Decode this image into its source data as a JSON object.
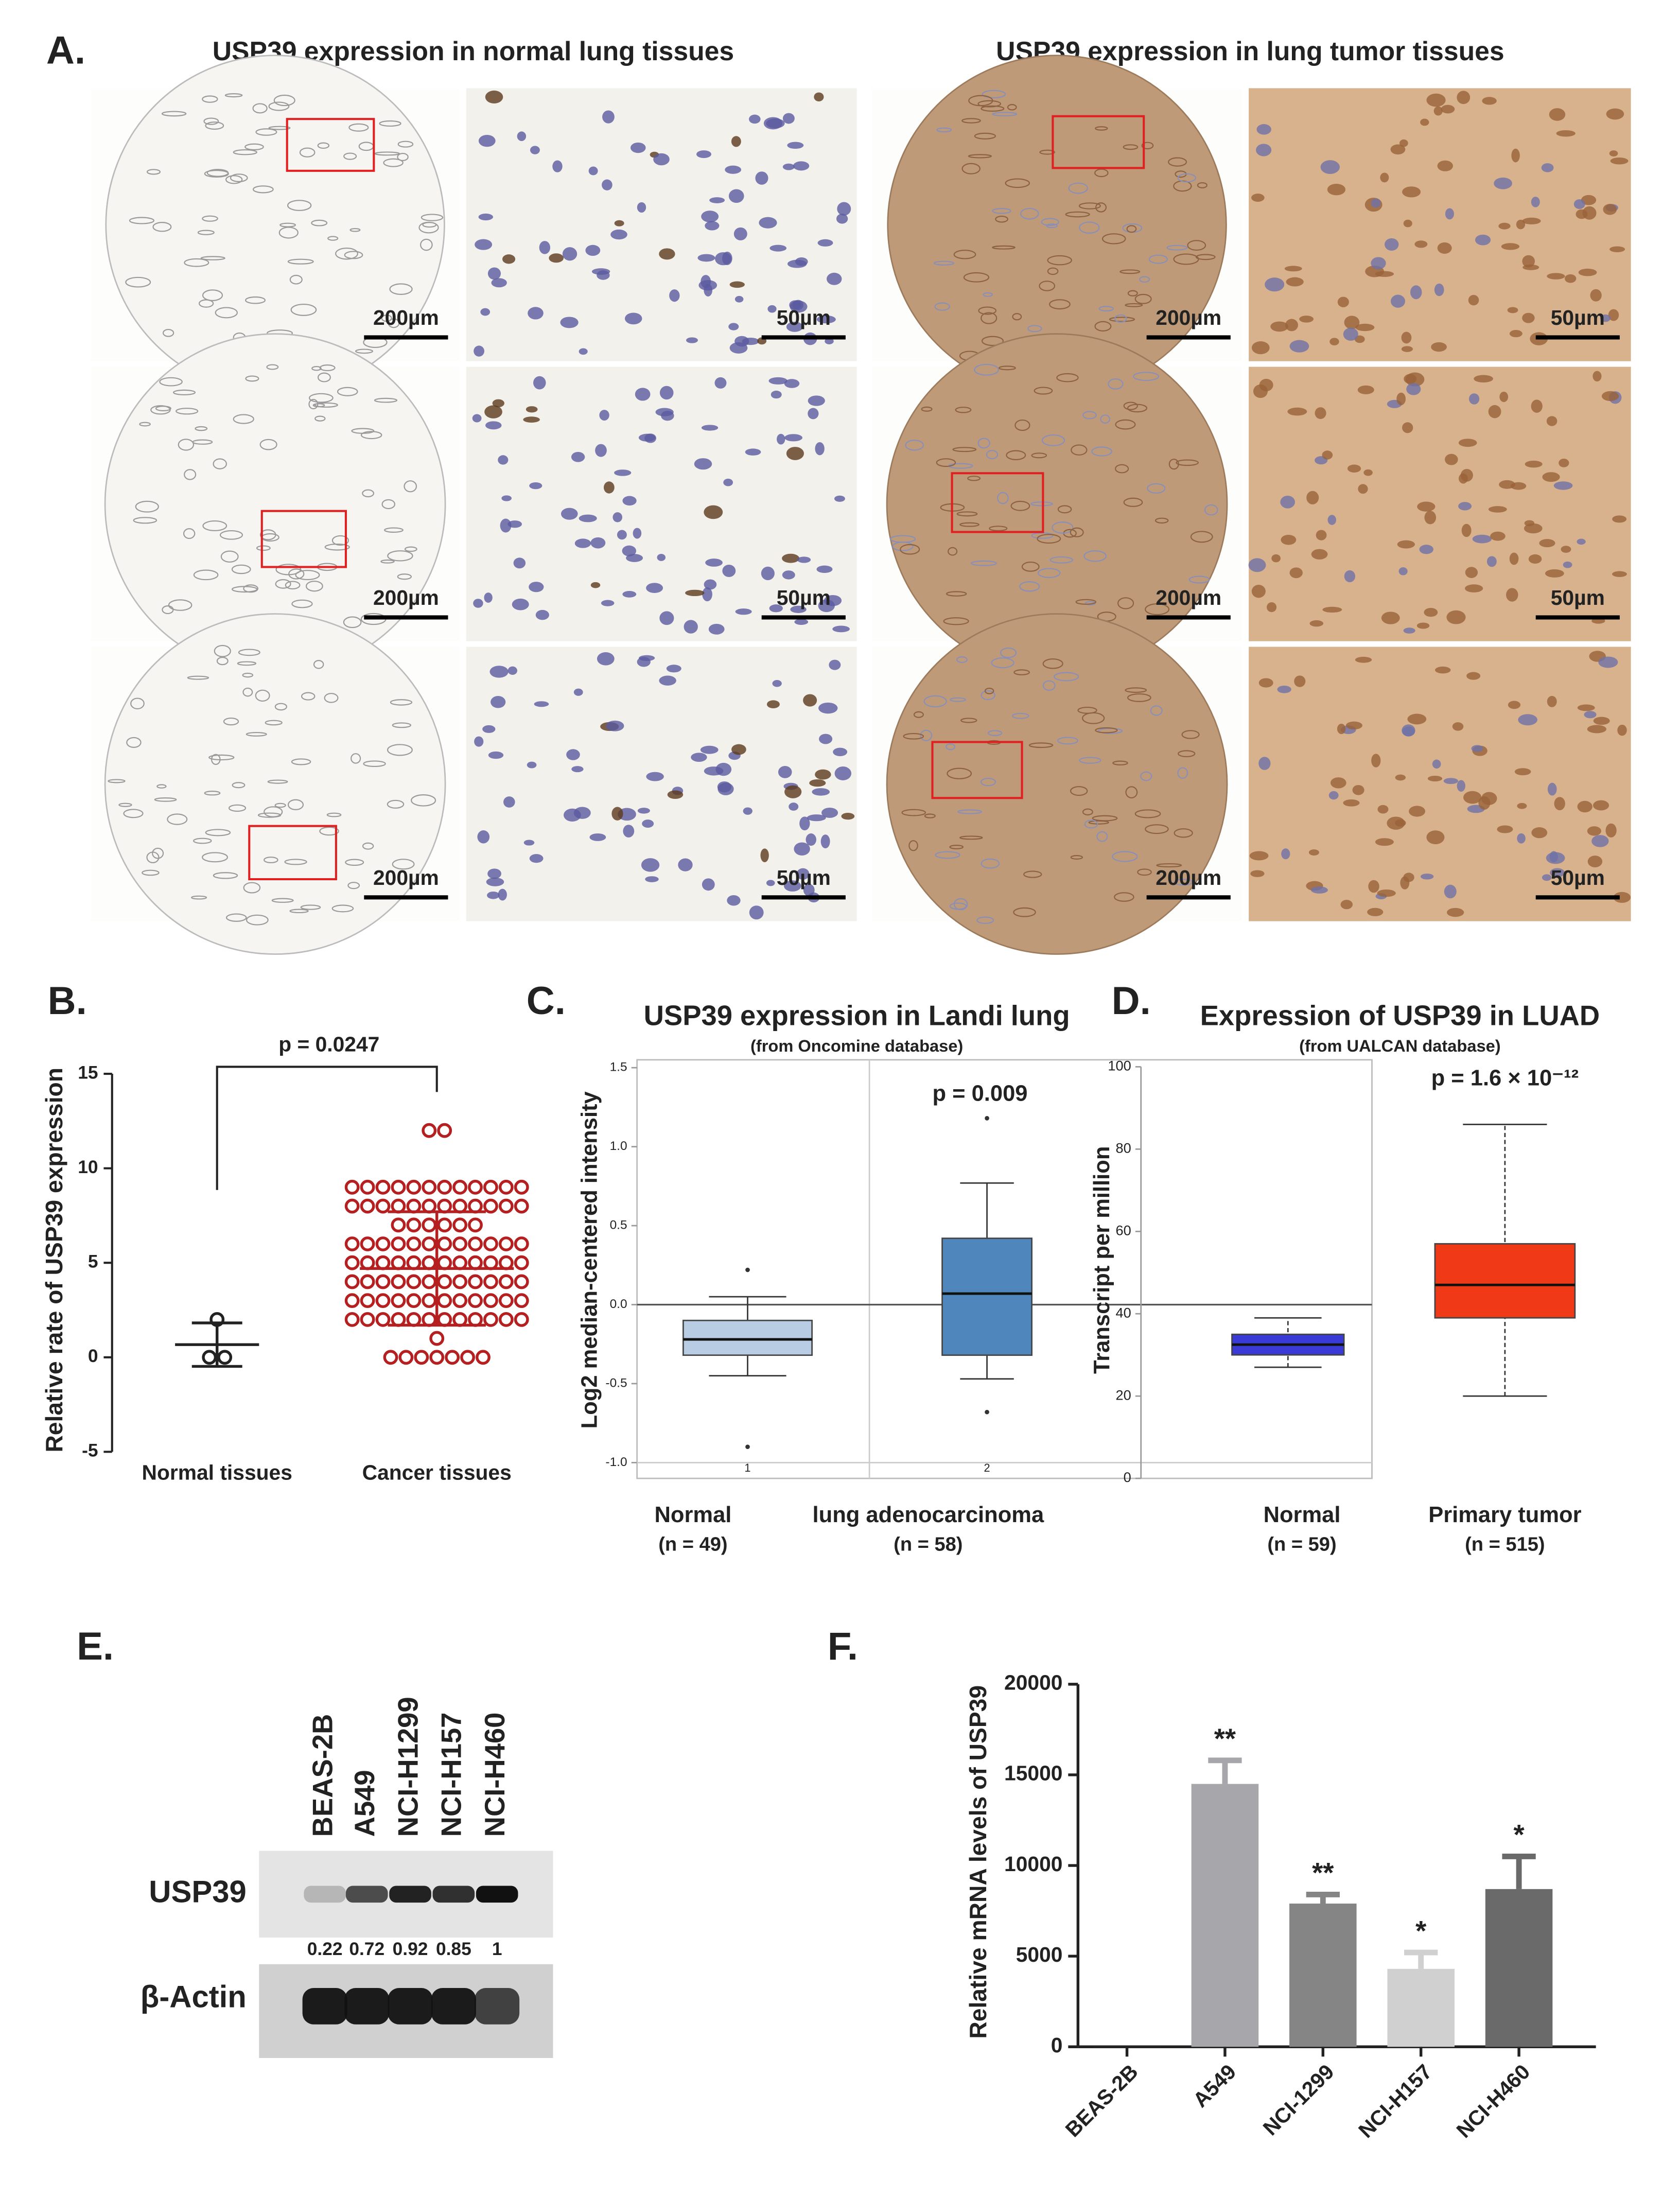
{
  "panel_a": {
    "label": "A.",
    "titles": [
      "USP39 expression in normal lung tissues",
      "USP39 expression in lung tumor tissues"
    ],
    "scale_bars": [
      [
        "200µm",
        "50µm",
        "200µm",
        "50µm"
      ],
      [
        "200µm",
        "50µm",
        "200µm",
        "50µm"
      ],
      [
        "200µm",
        "50µm",
        "200µm",
        "50µm"
      ]
    ]
  },
  "panel_e": {
    "label": "E.",
    "lanes": [
      "BEAS-2B",
      "A549",
      "NCI-H1299",
      "NCI-H157",
      "NCI-H460"
    ],
    "rows": [
      "USP39",
      "β-Actin"
    ],
    "quantification": [
      0.22,
      0.72,
      0.92,
      0.85,
      1
    ]
  },
  "chart_data": [
    {
      "type": "dotplot",
      "label": "B.",
      "ylabel": "Relative rate of USP39 expression",
      "categories": [
        "Normal tissues",
        "Cancer tissues"
      ],
      "values": [
        [
          2,
          0,
          0
        ],
        [
          12,
          12,
          9,
          9,
          9,
          9,
          9,
          9,
          9,
          9,
          9,
          9,
          9,
          9,
          8,
          8,
          8,
          8,
          8,
          8,
          8,
          8,
          8,
          8,
          8,
          8,
          7,
          7,
          7,
          7,
          7,
          7,
          6,
          6,
          6,
          6,
          6,
          6,
          6,
          6,
          6,
          6,
          6,
          6,
          5,
          5,
          5,
          5,
          5,
          5,
          5,
          5,
          5,
          5,
          5,
          5,
          4,
          4,
          4,
          4,
          4,
          4,
          4,
          4,
          4,
          4,
          4,
          4,
          3,
          3,
          3,
          3,
          3,
          3,
          3,
          3,
          3,
          3,
          3,
          3,
          2,
          2,
          2,
          2,
          2,
          2,
          2,
          2,
          2,
          2,
          2,
          2,
          1,
          0,
          0,
          0,
          0,
          0,
          0,
          0
        ]
      ],
      "means": [
        0.67,
        4.7
      ],
      "sd": [
        1.15,
        3.0
      ],
      "colors": [
        "#222222",
        "#b51f1f"
      ],
      "annotation": "p = 0.0247",
      "ylim": [
        -5,
        15
      ],
      "yticks": [
        -5,
        0,
        5,
        10,
        15
      ]
    },
    {
      "type": "box",
      "label": "C.",
      "title": "USP39 expression in Landi lung",
      "subtitle": "(from Oncomine database)",
      "ylabel": "Log2 median-centered intensity",
      "categories": [
        "Normal",
        "lung adenocarcinoma"
      ],
      "category_notes": [
        "(n = 49)",
        "(n = 58)"
      ],
      "inner_ticks": [
        1,
        2
      ],
      "boxes": [
        {
          "min": -0.45,
          "q1": -0.32,
          "median": -0.22,
          "q3": -0.1,
          "max": 0.05,
          "outliers": [
            0.22,
            -0.9
          ]
        },
        {
          "min": -0.47,
          "q1": -0.32,
          "median": 0.07,
          "q3": 0.42,
          "max": 0.77,
          "outliers": [
            1.18,
            -0.68
          ]
        }
      ],
      "colors": [
        "#b8cde3",
        "#4f87bd"
      ],
      "annotation": "p = 0.009",
      "ylim": [
        -1.1,
        1.55
      ],
      "yticks": [
        {
          "value": -1,
          "label": "-1.0"
        },
        -0.5,
        {
          "value": 0,
          "label": "0.0"
        },
        0.5,
        {
          "value": 1,
          "label": "1.0"
        },
        1.5
      ]
    },
    {
      "type": "box",
      "label": "D.",
      "title": "Expression of USP39 in LUAD",
      "subtitle": "(from UALCAN database)",
      "ylabel": "Transcript per million",
      "categories": [
        "Normal",
        "Primary tumor"
      ],
      "category_notes": [
        "(n = 59)",
        "(n = 515)"
      ],
      "boxes": [
        {
          "min": 27,
          "q1": 30,
          "median": 32.5,
          "q3": 35,
          "max": 39
        },
        {
          "min": 20,
          "q1": 39,
          "median": 47,
          "q3": 57,
          "max": 86
        }
      ],
      "colors": [
        "#3a3ad6",
        "#f03a17"
      ],
      "annotation": "p = 1.6 × 10⁻¹²",
      "ylim": [
        0,
        100
      ],
      "yticks": [
        0,
        20,
        40,
        60,
        80,
        100
      ]
    },
    {
      "type": "bar",
      "label": "F.",
      "ylabel": "Relative mRNA levels of USP39",
      "categories": [
        "BEAS-2B",
        "A549",
        "NCI-1299",
        "NCI-H157",
        "NCI-H460"
      ],
      "values": [
        1,
        14500,
        7900,
        4300,
        8700
      ],
      "errors": [
        0,
        1300,
        500,
        900,
        1800
      ],
      "significance": [
        null,
        "**",
        "**",
        "*",
        "*"
      ],
      "colors": [
        "#bbbbbb",
        "#a6a6ab",
        "#858585",
        "#d0d0d0",
        "#6a6a6a"
      ],
      "ylim": [
        0,
        20000
      ],
      "yticks": [
        0,
        5000,
        10000,
        15000,
        20000
      ]
    }
  ]
}
